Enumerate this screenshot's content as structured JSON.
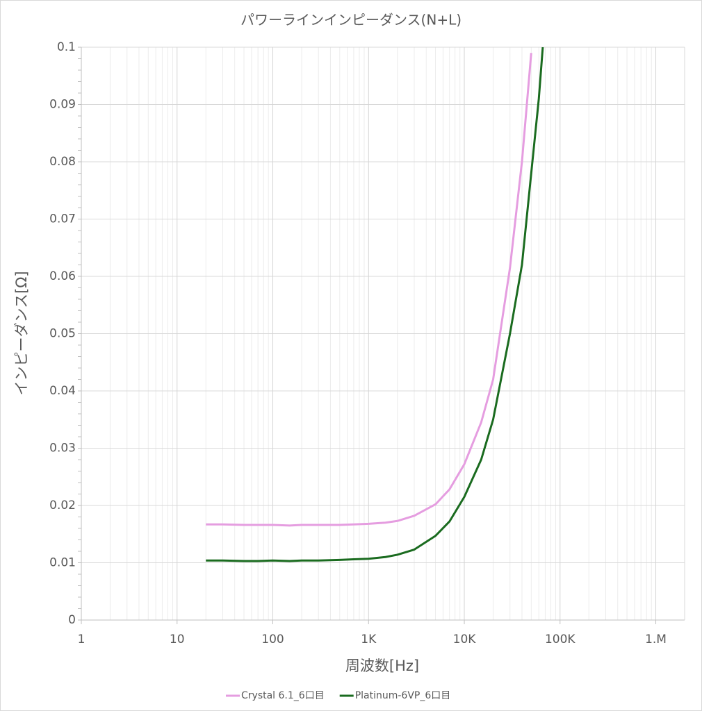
{
  "chart_data": {
    "type": "line",
    "title": "パワーラインインピーダンス(N+L)",
    "x_label": "周波数[Hz]",
    "y_label": "インピーダンス[Ω]",
    "x_scale": "log",
    "x": [
      20,
      30,
      50,
      70,
      100,
      150,
      200,
      300,
      500,
      700,
      1000,
      1500,
      2000,
      3000,
      5000,
      7000,
      10000,
      15000,
      20000,
      30000,
      40000,
      50000,
      60000,
      66000
    ],
    "series": [
      {
        "name": "Crystal 6.1_6口目",
        "color": "#e59de0",
        "values": [
          0.0167,
          0.0167,
          0.0166,
          0.0166,
          0.0166,
          0.0165,
          0.0166,
          0.0166,
          0.0166,
          0.0167,
          0.0168,
          0.017,
          0.0173,
          0.0182,
          0.0202,
          0.0228,
          0.0272,
          0.0345,
          0.042,
          0.0615,
          0.08,
          0.099,
          null,
          null
        ]
      },
      {
        "name": "Platinum-6VP_6口目",
        "color": "#1a6b1f",
        "values": [
          0.0104,
          0.0104,
          0.0103,
          0.0103,
          0.0104,
          0.0103,
          0.0104,
          0.0104,
          0.0105,
          0.0106,
          0.0107,
          0.011,
          0.0114,
          0.0123,
          0.0147,
          0.0172,
          0.0215,
          0.028,
          0.035,
          0.05,
          0.062,
          0.078,
          0.091,
          0.1
        ]
      }
    ],
    "xlim": [
      1,
      2000000
    ],
    "xticks": [
      1,
      10,
      100,
      {
        "value": 1000,
        "label": "1K"
      },
      {
        "value": 10000,
        "label": "10K"
      },
      {
        "value": 100000,
        "label": "100K"
      },
      {
        "value": 1000000,
        "label": "1.M"
      }
    ],
    "ylim": [
      0,
      0.1
    ],
    "yticks": [
      0,
      0.01,
      0.02,
      0.03,
      0.04,
      0.05,
      0.06,
      0.07,
      0.08,
      0.09,
      0.1
    ],
    "grid": true,
    "minor_grid": true,
    "legend": "bottom"
  }
}
